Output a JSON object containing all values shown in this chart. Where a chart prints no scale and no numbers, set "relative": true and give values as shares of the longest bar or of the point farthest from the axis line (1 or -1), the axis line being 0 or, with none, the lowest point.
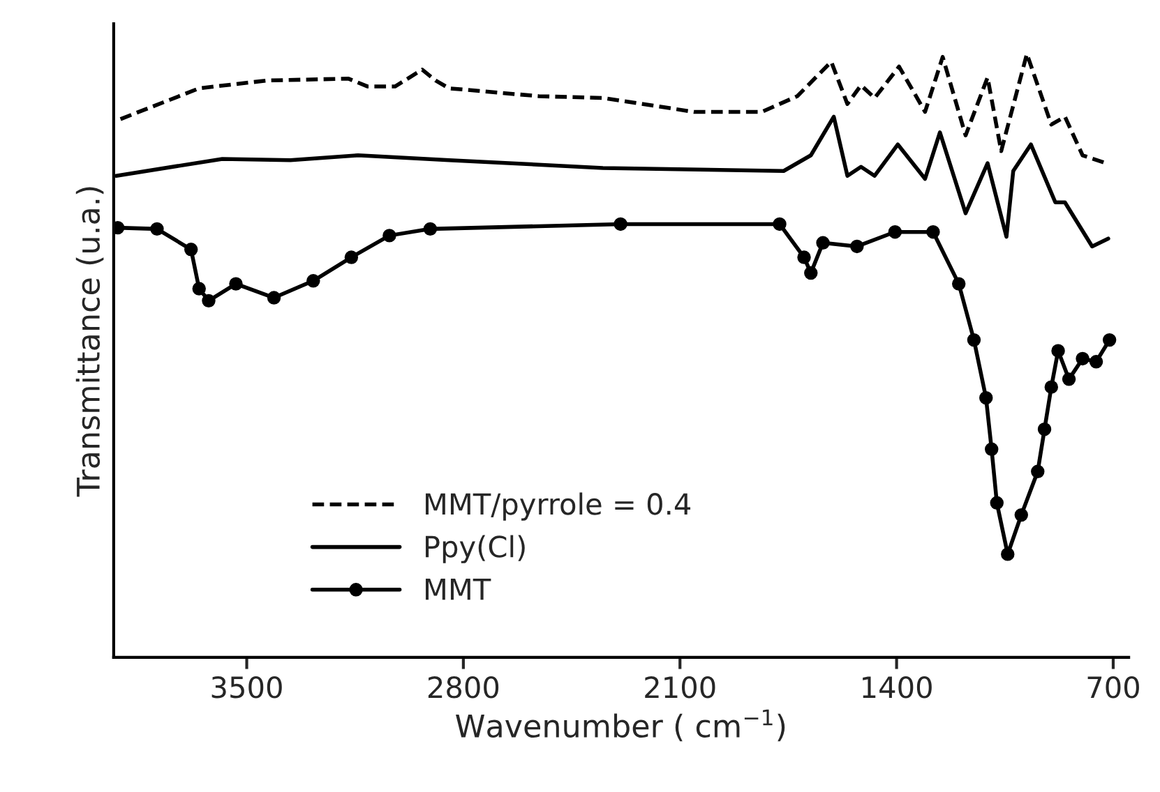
{
  "chart_data": {
    "type": "line",
    "relative": true,
    "xlabel": "Wavenumber ( cm$^{−1}$)",
    "ylabel": "Transmittance (u.a.)",
    "xlim": [
      3930,
      650
    ],
    "xticks": [
      3500,
      2800,
      2100,
      1400,
      700
    ],
    "tick_labels": "x",
    "grid": false,
    "legend": "bottom left",
    "series": [
      {
        "name": "MMT/pyrrole = 0.4",
        "color": "#000000",
        "line_style": "dashed",
        "marker": "none",
        "x": [
          3908,
          3654,
          3434,
          3171,
          3109,
          3021,
          2933,
          2890,
          2846,
          2556,
          2349,
          2055,
          1835,
          1721,
          1611,
          1559,
          1515,
          1471,
          1392,
          1308,
          1251,
          1177,
          1106,
          1062,
          979,
          900,
          856,
          799,
          724
        ],
        "values": [
          0.892,
          0.943,
          0.956,
          0.959,
          0.946,
          0.946,
          0.974,
          0.956,
          0.943,
          0.93,
          0.927,
          0.904,
          0.904,
          0.93,
          0.987,
          0.917,
          0.948,
          0.927,
          0.979,
          0.904,
          0.995,
          0.865,
          0.961,
          0.839,
          1,
          0.883,
          0.896,
          0.832,
          0.819
        ]
      },
      {
        "name": "Ppy(Cl)",
        "color": "#000000",
        "line_style": "solid",
        "marker": "none",
        "x": [
          3922,
          3579,
          3359,
          3140,
          2846,
          2349,
          1765,
          1677,
          1603,
          1559,
          1515,
          1471,
          1396,
          1308,
          1260,
          1177,
          1106,
          1045,
          1023,
          966,
          887,
          856,
          768,
          716
        ],
        "values": [
          0.798,
          0.826,
          0.824,
          0.832,
          0.824,
          0.811,
          0.806,
          0.832,
          0.896,
          0.798,
          0.813,
          0.798,
          0.85,
          0.793,
          0.87,
          0.736,
          0.819,
          0.697,
          0.806,
          0.85,
          0.754,
          0.754,
          0.681,
          0.694
        ]
      },
      {
        "name": "MMT",
        "color": "#000000",
        "line_style": "solid",
        "marker": "circle",
        "x": [
          3917,
          3790,
          3680,
          3654,
          3623,
          3535,
          3412,
          3285,
          3162,
          3039,
          2907,
          2292,
          1778,
          1699,
          1677,
          1638,
          1528,
          1405,
          1282,
          1199,
          1150,
          1111,
          1093,
          1076,
          1041,
          997,
          944,
          922,
          900,
          878,
          843,
          799,
          755,
          712
        ],
        "values": [
          0.712,
          0.71,
          0.676,
          0.611,
          0.591,
          0.619,
          0.596,
          0.624,
          0.663,
          0.699,
          0.71,
          0.718,
          0.718,
          0.663,
          0.637,
          0.687,
          0.681,
          0.705,
          0.705,
          0.619,
          0.526,
          0.43,
          0.345,
          0.256,
          0.171,
          0.236,
          0.308,
          0.378,
          0.448,
          0.508,
          0.461,
          0.495,
          0.49,
          0.526
        ]
      }
    ]
  }
}
